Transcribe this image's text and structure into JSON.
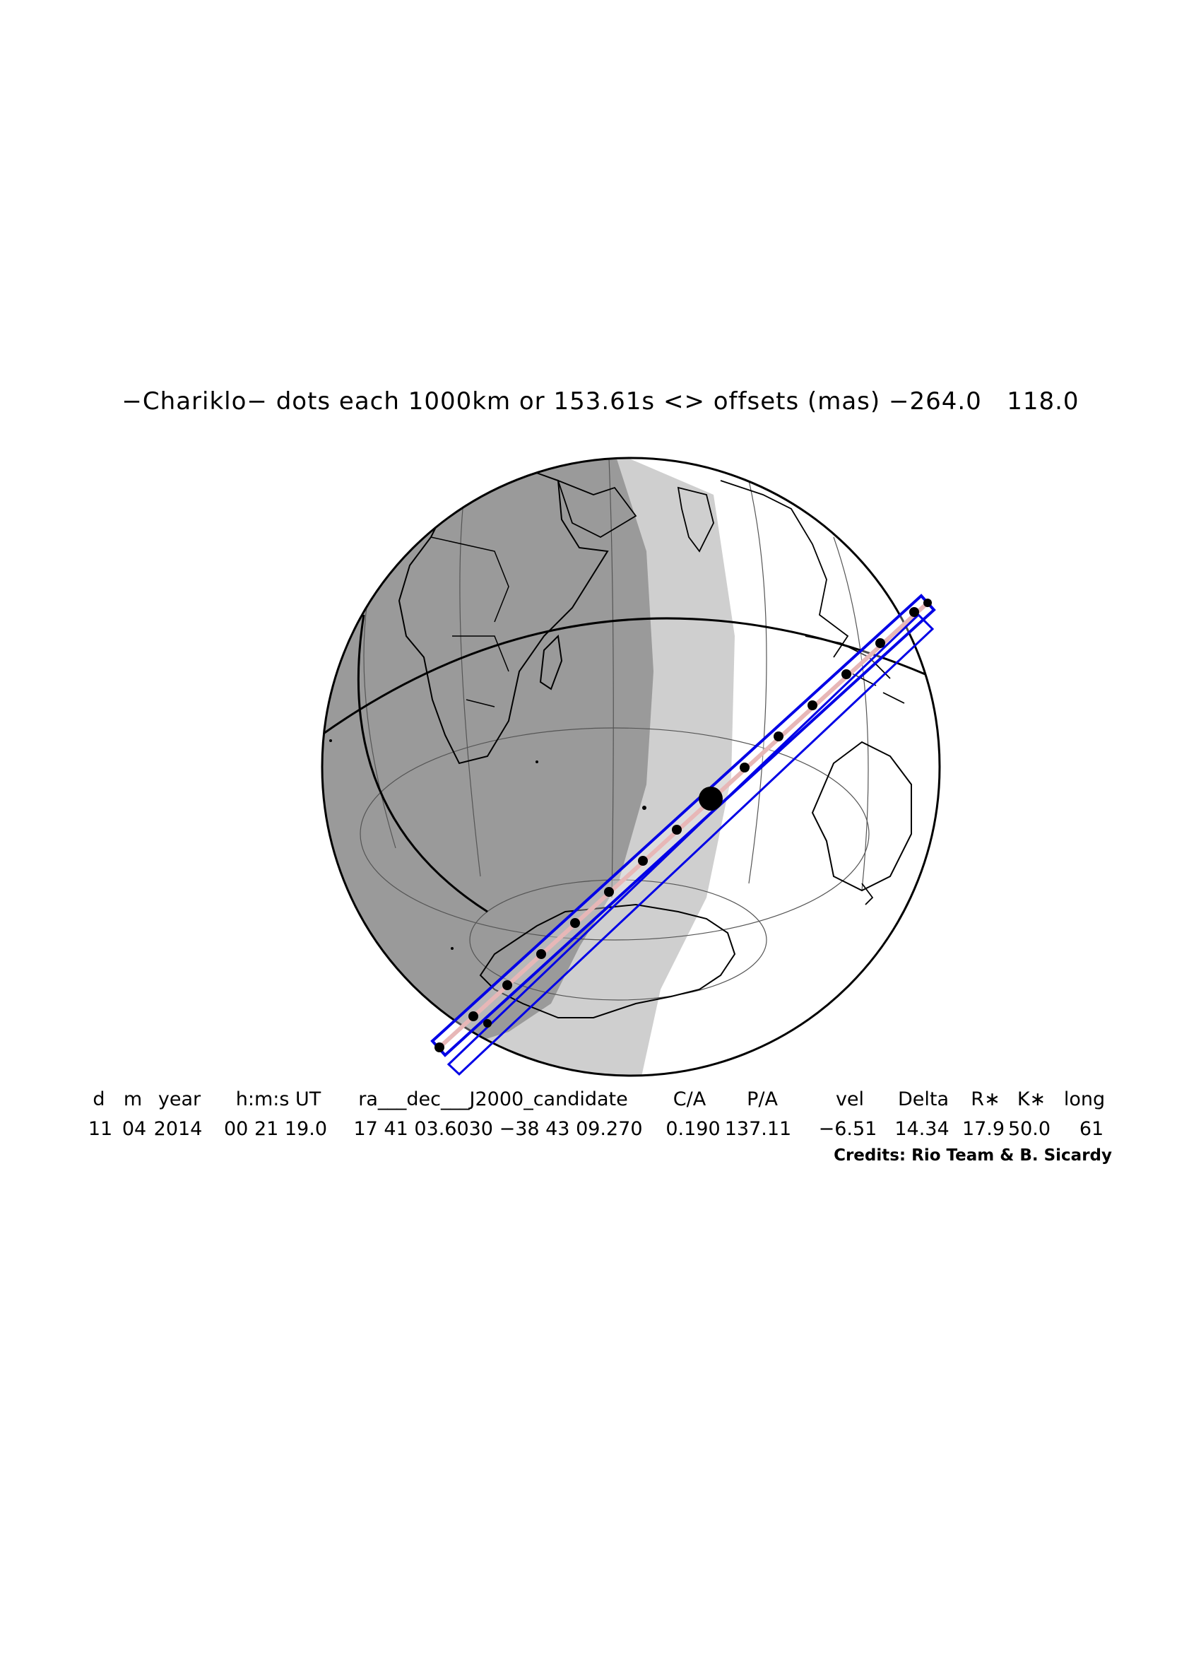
{
  "title": "−Chariklo− dots each 1000km or 153.61s <> offsets (mas) −264.0   118.0",
  "table": {
    "headers": [
      "d",
      "m",
      "year",
      "h:m:s UT",
      "ra___dec___J2000_candidate",
      "C/A",
      "P/A",
      "vel",
      "Delta",
      "R∗",
      "K∗",
      "long"
    ],
    "values": [
      "11",
      "04",
      "2014",
      "00 21 19.0",
      "17 41 03.6030 −38 43 09.270",
      "0.190",
      "137.11",
      "−6.51",
      "14.34",
      "17.9",
      "50.0",
      "61"
    ]
  },
  "credits": "Credits: Rio Team & B. Sicardy",
  "colors": {
    "night": "#9a9a9a",
    "twilight": "#cfcfcf",
    "day": "#ffffff",
    "path": "#0000e6",
    "path_center": "#e7b7b7",
    "dots": "#000000"
  }
}
